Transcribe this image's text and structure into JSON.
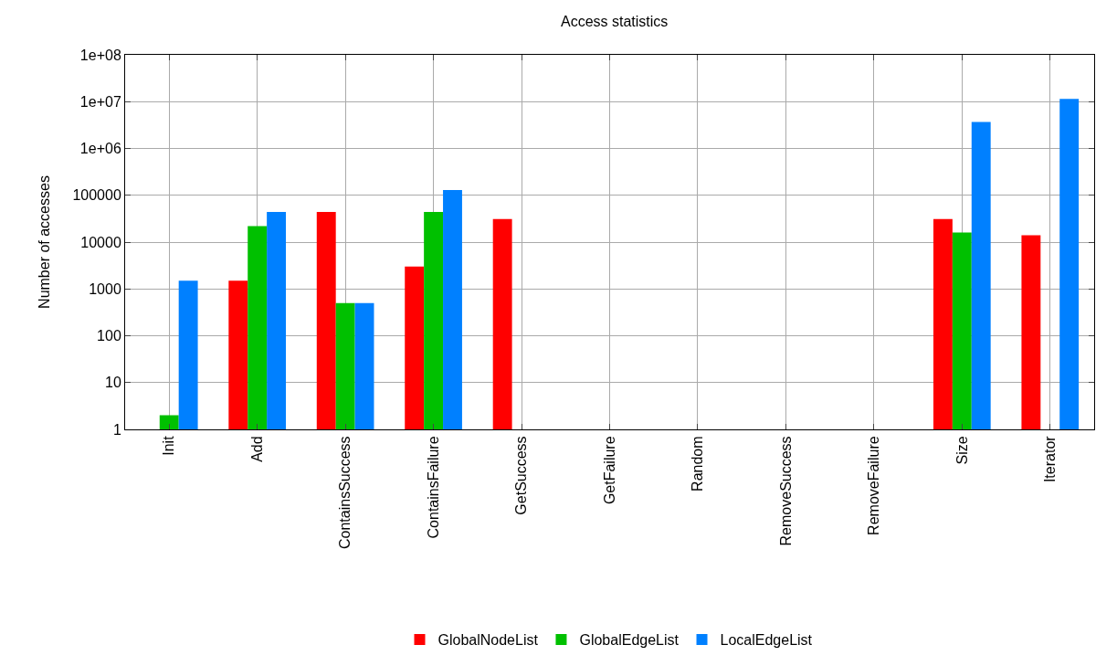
{
  "chart_data": {
    "type": "bar",
    "title": "Access statistics",
    "ylabel": "Number of accesses",
    "categories": [
      "Init",
      "Add",
      "ContainsSuccess",
      "ContainsFailure",
      "GetSuccess",
      "GetFailure",
      "Random",
      "RemoveSuccess",
      "RemoveFailure",
      "Size",
      "Iterator"
    ],
    "series": [
      {
        "name": "GlobalNodeList",
        "color": "#ff0000",
        "values": [
          null,
          1500,
          44000,
          3000,
          31000,
          null,
          null,
          null,
          null,
          31000,
          14000
        ]
      },
      {
        "name": "GlobalEdgeList",
        "color": "#00c000",
        "values": [
          2,
          22000,
          500,
          44000,
          null,
          null,
          null,
          null,
          null,
          16000,
          null
        ]
      },
      {
        "name": "LocalEdgeList",
        "color": "#0080ff",
        "values": [
          1500,
          44000,
          500,
          130000,
          null,
          null,
          null,
          null,
          null,
          3700000,
          11500000
        ]
      }
    ],
    "log": "y",
    "ylim": [
      1,
      100000000
    ],
    "yticks": [
      1,
      10,
      100,
      1000,
      10000,
      100000,
      {
        "value": 1000000,
        "label": "1e+06"
      },
      {
        "value": 10000000,
        "label": "1e+07"
      },
      {
        "value": 100000000,
        "label": "1e+08"
      }
    ],
    "grid": true,
    "legend": "bottom"
  }
}
